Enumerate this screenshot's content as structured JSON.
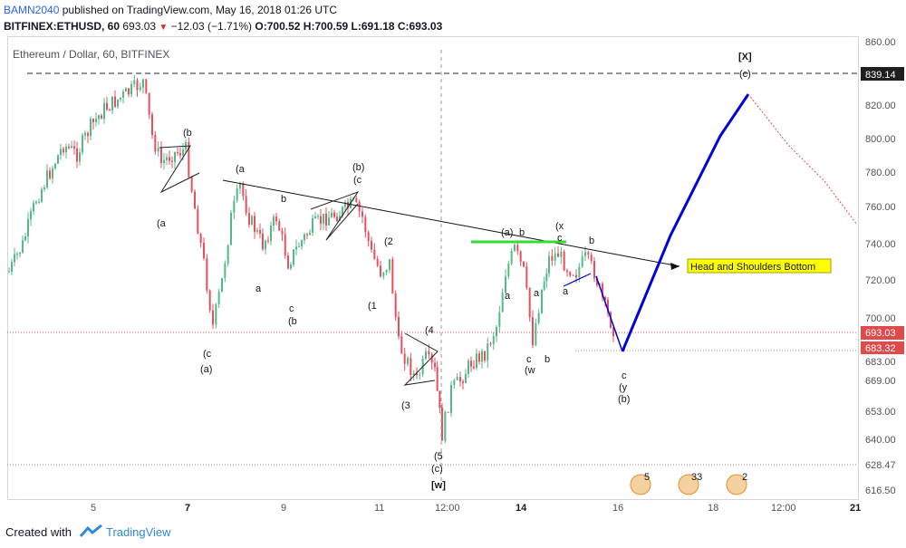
{
  "header": {
    "username": "BAMN2040",
    "published": "published on TradingView.com, May 16, 2018 01:26 UTC",
    "symbol_line": "BITFINEX:ETHUSD, 60",
    "last": "693.03",
    "change": "−12.03 (−1.71%)",
    "ohlc": {
      "o": "O:700.52",
      "h": "H:700.59",
      "l": "L:691.18",
      "c": "C:693.03"
    }
  },
  "chart": {
    "title": "Ethereum / Dollar, 60, BITFINEX",
    "y_axis": {
      "min": 610,
      "max": 862,
      "ticks": [
        "860.00",
        "839.14",
        "820.00",
        "800.00",
        "780.00",
        "760.00",
        "740.00",
        "720.00",
        "700.00",
        "693.03",
        "683.32",
        "683.00",
        "669.00",
        "653.00",
        "640.00",
        "628.47",
        "616.50"
      ]
    },
    "x_axis": [
      "5",
      "7",
      "9",
      "11",
      "12:00",
      "14",
      "16",
      "18",
      "12:00",
      "21"
    ],
    "markers": {
      "x_label": "[X]",
      "c_label": "(c)",
      "w_label": "[w]",
      "resistance": "839.14",
      "support": "628.47",
      "last_price": "693.03",
      "low_price": "683.32"
    },
    "wave_labels": [
      "(b",
      "(a",
      "(a",
      "b",
      "(b)",
      "(c",
      "(2",
      "(1",
      "c",
      "(b",
      "a",
      "(c",
      "(a)",
      "(4",
      "(3",
      "(5",
      "(c)",
      "(a)",
      "b",
      "(x",
      "c",
      "b",
      "a",
      "a",
      "c",
      "(w",
      "b",
      "c",
      "(y",
      "(b)"
    ],
    "annotation": "Head and Shoulders Bottom",
    "events": [
      "5",
      "33",
      "2"
    ]
  },
  "footer": {
    "created_with": "Created with",
    "brand": "TradingView"
  },
  "colors": {
    "up": "#53b987",
    "down": "#eb4d5c",
    "projection": "#0000dd",
    "neckline": "#33dd33",
    "annotation_bg": "#ffff00"
  }
}
